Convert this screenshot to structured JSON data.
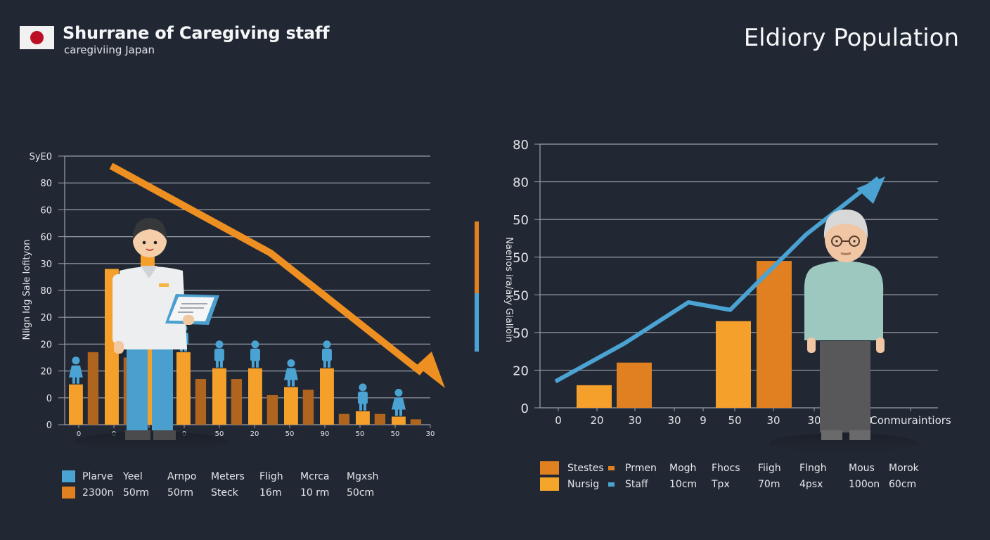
{
  "header": {
    "title": "Shurrane of Caregiving staff",
    "subtitle": "caregiviing Japan",
    "right_title": "Eldiory Population",
    "flag": "japan-flag"
  },
  "colors": {
    "background": "#222833",
    "orange": "#f5a02a",
    "dark_orange": "#b0651e",
    "deep_orange": "#e08020",
    "blue": "#4aa3d3",
    "grid": "#9aa0aa"
  },
  "chart_data": [
    {
      "type": "bar",
      "title": "Shurrane of Caregiving staff",
      "ylabel": "Nlign Idg Sale Iofityon",
      "y_tick_labels": [
        "0",
        "0",
        "20",
        "20",
        "20",
        "80",
        "30",
        "60",
        "60",
        "80",
        "SyE0"
      ],
      "x_tick_labels": [
        "0",
        "0",
        "",
        "0",
        "50",
        "20",
        "50",
        "90",
        "50",
        "50",
        "30"
      ],
      "ylim": [
        0,
        100
      ],
      "grid": true,
      "series": [
        {
          "name": "Plarve",
          "color": "orange",
          "values": [
            15,
            58,
            70,
            27,
            21,
            21,
            14,
            21,
            5,
            3
          ]
        },
        {
          "name": "2300n",
          "color": "dark_orange",
          "values": [
            27,
            25,
            28,
            17,
            17,
            11,
            13,
            4,
            4,
            2
          ]
        }
      ],
      "bar_pairs_dark_first": [
        [
          27,
          18
        ],
        [
          0,
          0
        ],
        [
          28,
          0
        ],
        [
          17,
          17
        ],
        [
          13,
          17
        ],
        [
          11,
          13
        ],
        [
          4,
          4
        ]
      ],
      "trend_arrow": {
        "direction": "down",
        "from": [
          0.6,
          97
        ],
        "via": [
          2.9,
          64
        ],
        "to": [
          5.1,
          14
        ]
      },
      "figures": [
        "female-figure",
        "male-figure",
        "male-figure",
        "male-figure",
        "female-figure",
        "male-figure",
        "male-figure",
        "female-figure"
      ],
      "illustration": "caregiver-with-clipboard",
      "legend": {
        "placement": "bottom",
        "rows": [
          [
            "Plarve",
            "Yeel",
            "Arnpo",
            "Meters",
            "Fligh",
            "Mcrca",
            "Mgxsh"
          ],
          [
            "2300n",
            "50rm",
            "50rm",
            "Steck",
            "16m",
            "10 rm",
            "50cm"
          ]
        ],
        "swatches": [
          "blue",
          "deep_orange"
        ]
      }
    },
    {
      "type": "bar",
      "title": "Eldiory Population",
      "ylabel": "Naenos ira/aky Gialloin",
      "y_tick_labels": [
        "0",
        "20",
        "50",
        "50",
        "50",
        "50",
        "80",
        "80"
      ],
      "x_tick_labels": [
        "0",
        "20",
        "30",
        "30",
        "9",
        "50",
        "30",
        "30",
        "",
        "0",
        "Conmuraintiors"
      ],
      "ylim": [
        0,
        7
      ],
      "grid": true,
      "bars": [
        {
          "x_index": 1,
          "value": 0.6,
          "color": "orange"
        },
        {
          "x_index": 2,
          "value": 1.2,
          "color": "deep_orange"
        },
        {
          "x_index": 5,
          "value": 2.3,
          "color": "orange"
        },
        {
          "x_index": 6,
          "value": 3.9,
          "color": "deep_orange"
        }
      ],
      "line": {
        "name": "Staff",
        "color": "blue",
        "points": [
          [
            0,
            0.7
          ],
          [
            1.8,
            1.7
          ],
          [
            3.5,
            2.8
          ],
          [
            4.6,
            2.6
          ],
          [
            6.6,
            4.6
          ],
          [
            8.5,
            6.1
          ]
        ],
        "arrow_end": true
      },
      "illustration": "elderly-man-with-glasses",
      "legend": {
        "placement": "bottom",
        "rows": [
          [
            "Stestes",
            "Prmen",
            "Mogh",
            "Fhocs",
            "Fiigh",
            "Flngh",
            "Mous",
            "Morok"
          ],
          [
            "Nursig",
            "Staff",
            "10cm",
            "Tpx",
            "70m",
            "4psx",
            "100on",
            "60cm"
          ]
        ],
        "swatches": [
          "deep_orange",
          "orange"
        ],
        "mini_swatches": [
          "deep_orange",
          "blue"
        ]
      }
    }
  ],
  "side_indicator": {
    "top_color": "deep_orange",
    "bottom_color": "blue",
    "split": 0.55
  }
}
